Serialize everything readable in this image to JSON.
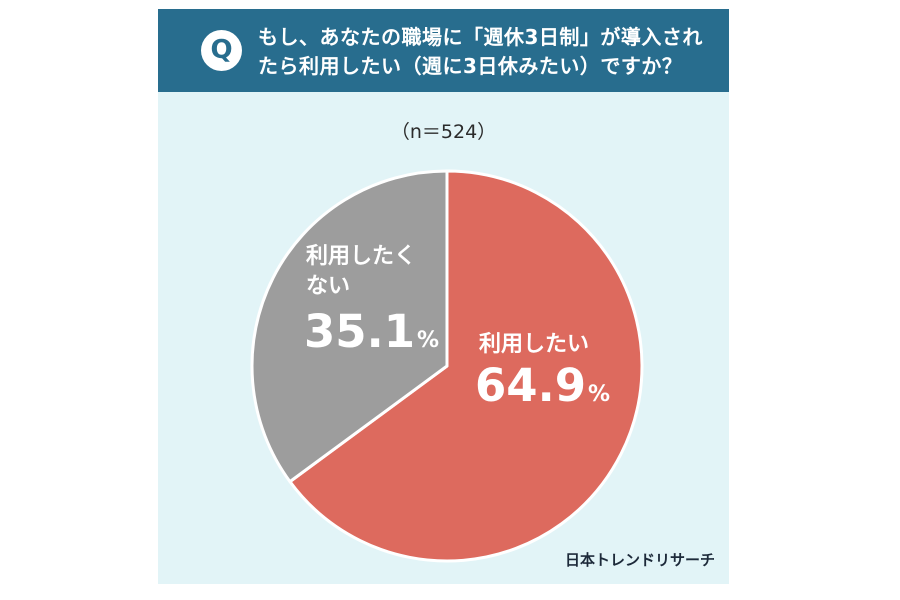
{
  "header": {
    "badge": "Q",
    "question_line1": "もし、あなたの職場に「週休3日制」が導入され",
    "question_line2": "たら利用したい（週に3日休みたい）ですか？"
  },
  "sample_size": "（n＝524）",
  "chart_data": {
    "type": "pie",
    "start_angle_deg": 0,
    "direction": "clockwise",
    "slices": [
      {
        "label": "利用したい",
        "value": 64.9,
        "display": "64.9",
        "unit": "%",
        "color": "#dd6a5e"
      },
      {
        "label": "利用したくない",
        "label_line1": "利用したく",
        "label_line2": "ない",
        "value": 35.1,
        "display": "35.1",
        "unit": "%",
        "color": "#9d9d9d"
      }
    ]
  },
  "source": "日本トレンドリサーチ",
  "colors": {
    "header_bg": "#286d8e",
    "card_bg": "#e2f4f7",
    "slice_separator": "#ffffff"
  }
}
